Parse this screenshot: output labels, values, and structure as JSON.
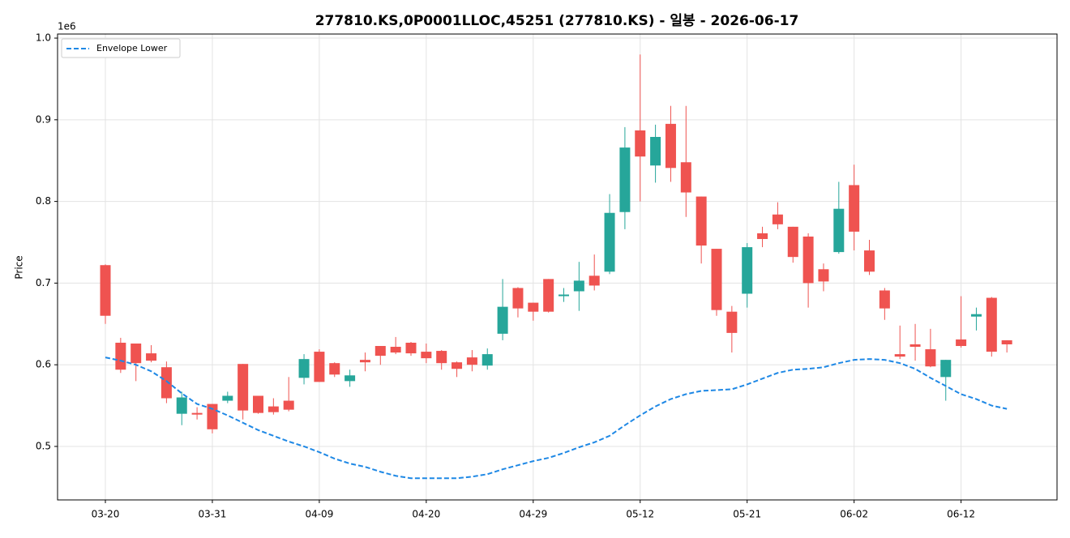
{
  "chart_data": {
    "type": "candlestick",
    "title": "277810.KS,0P0001LLOC,45251 (277810.KS) - 일봉 - 2026-06-17",
    "ylabel": "Price",
    "offset_text": "1e6",
    "categories": [
      "03-20",
      null,
      null,
      null,
      null,
      null,
      null,
      "03-31",
      null,
      null,
      null,
      null,
      null,
      null,
      "04-09",
      null,
      null,
      null,
      null,
      null,
      null,
      "04-20",
      null,
      null,
      null,
      null,
      null,
      null,
      "04-29",
      null,
      null,
      null,
      null,
      null,
      null,
      "05-12",
      null,
      null,
      null,
      null,
      null,
      null,
      "05-21",
      null,
      null,
      null,
      null,
      null,
      null,
      "06-02",
      null,
      null,
      null,
      null,
      null,
      null,
      "06-12",
      null,
      null,
      null
    ],
    "open": [
      0.722,
      0.627,
      0.626,
      0.614,
      0.597,
      0.54,
      0.541,
      0.552,
      0.556,
      0.601,
      0.562,
      0.549,
      0.556,
      0.584,
      0.616,
      0.602,
      0.58,
      0.606,
      0.623,
      0.622,
      0.627,
      0.616,
      0.617,
      0.603,
      0.609,
      0.599,
      0.638,
      0.694,
      0.676,
      0.705,
      0.684,
      0.69,
      0.709,
      0.714,
      0.787,
      0.887,
      0.844,
      0.895,
      0.848,
      0.806,
      0.742,
      0.665,
      0.687,
      0.761,
      0.784,
      0.769,
      0.757,
      0.717,
      0.738,
      0.82,
      0.74,
      0.691,
      0.613,
      0.625,
      0.619,
      0.585,
      0.631,
      0.659,
      0.682,
      0.63
    ],
    "high": [
      0.723,
      0.633,
      0.626,
      0.624,
      0.604,
      0.567,
      0.548,
      0.552,
      0.567,
      0.601,
      0.562,
      0.559,
      0.585,
      0.613,
      0.619,
      0.603,
      0.594,
      0.615,
      0.623,
      0.634,
      0.628,
      0.626,
      0.618,
      0.604,
      0.618,
      0.62,
      0.705,
      0.695,
      0.676,
      0.705,
      0.694,
      0.726,
      0.735,
      0.809,
      0.891,
      0.98,
      0.894,
      0.917,
      0.917,
      0.806,
      0.742,
      0.672,
      0.749,
      0.769,
      0.799,
      0.769,
      0.761,
      0.724,
      0.824,
      0.845,
      0.753,
      0.694,
      0.648,
      0.65,
      0.644,
      0.606,
      0.684,
      0.67,
      0.683,
      0.63
    ],
    "low": [
      0.65,
      0.59,
      0.58,
      0.603,
      0.553,
      0.526,
      0.533,
      0.516,
      0.553,
      0.533,
      0.54,
      0.539,
      0.543,
      0.576,
      0.579,
      0.585,
      0.573,
      0.592,
      0.6,
      0.613,
      0.611,
      0.602,
      0.594,
      0.585,
      0.592,
      0.594,
      0.63,
      0.658,
      0.654,
      0.664,
      0.677,
      0.666,
      0.691,
      0.711,
      0.766,
      0.8,
      0.823,
      0.824,
      0.781,
      0.724,
      0.66,
      0.615,
      0.67,
      0.744,
      0.766,
      0.725,
      0.67,
      0.69,
      0.736,
      0.74,
      0.71,
      0.655,
      0.607,
      0.605,
      0.597,
      0.556,
      0.621,
      0.642,
      0.61,
      0.615
    ],
    "close": [
      0.66,
      0.594,
      0.602,
      0.605,
      0.559,
      0.56,
      0.539,
      0.521,
      0.562,
      0.544,
      0.541,
      0.542,
      0.545,
      0.607,
      0.579,
      0.588,
      0.587,
      0.603,
      0.611,
      0.615,
      0.614,
      0.608,
      0.602,
      0.595,
      0.6,
      0.613,
      0.671,
      0.669,
      0.665,
      0.665,
      0.686,
      0.703,
      0.697,
      0.786,
      0.866,
      0.855,
      0.879,
      0.841,
      0.811,
      0.746,
      0.667,
      0.639,
      0.744,
      0.754,
      0.772,
      0.732,
      0.7,
      0.702,
      0.791,
      0.763,
      0.714,
      0.669,
      0.61,
      0.622,
      0.598,
      0.606,
      0.623,
      0.662,
      0.616,
      0.625
    ],
    "up_color": "#26a69a",
    "down_color": "#ef5350",
    "series": [
      {
        "name": "Envelope Lower",
        "color": "#1e88e5",
        "dashed": true,
        "values": [
          0.609,
          0.605,
          0.6,
          0.592,
          0.58,
          0.565,
          0.552,
          0.546,
          0.538,
          0.529,
          0.52,
          0.513,
          0.506,
          0.5,
          0.493,
          0.485,
          0.479,
          0.475,
          0.469,
          0.464,
          0.461,
          0.461,
          0.461,
          0.461,
          0.463,
          0.466,
          0.472,
          0.477,
          0.482,
          0.486,
          0.492,
          0.499,
          0.505,
          0.513,
          0.526,
          0.538,
          0.549,
          0.558,
          0.564,
          0.568,
          0.569,
          0.57,
          0.576,
          0.583,
          0.59,
          0.594,
          0.595,
          0.597,
          0.602,
          0.606,
          0.607,
          0.606,
          0.602,
          0.595,
          0.584,
          0.574,
          0.564,
          0.558,
          0.55,
          0.546
        ]
      }
    ],
    "ylim": [
      0.4345,
      1.005
    ],
    "yticks": [
      0.5,
      0.6,
      0.7,
      0.8,
      0.9,
      {
        "value": 1,
        "label": "1.0"
      }
    ],
    "grid": true,
    "legend": "upper left"
  }
}
